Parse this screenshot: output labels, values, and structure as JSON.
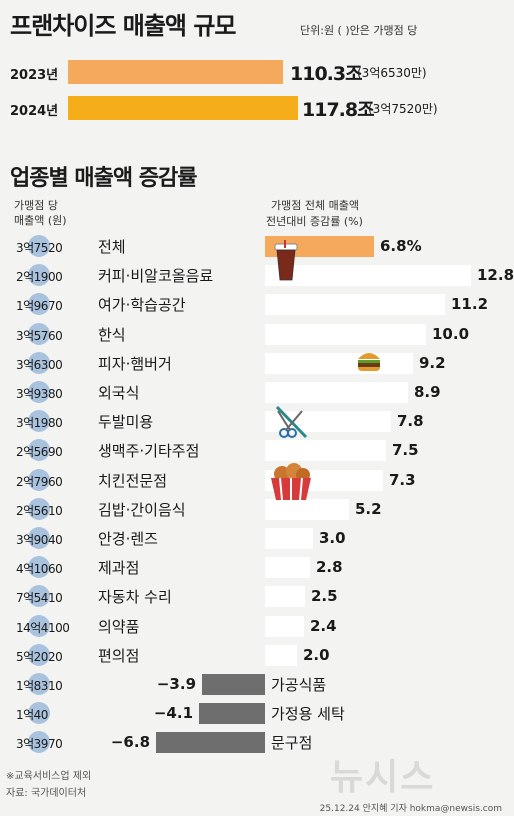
{
  "header": {
    "title": "프랜차이즈 매출액 규모",
    "unit_note": "단위:원 ( )안은 가맹점 당"
  },
  "totals": [
    {
      "year": "2023년",
      "value_label": "110.3조",
      "per_store": "(3억6530만)",
      "value": 110.3
    },
    {
      "year": "2024년",
      "value_label": "117.8조",
      "per_store": "(3억7520만)",
      "value": 117.8
    }
  ],
  "totals_colors": [
    "#f4a95c",
    "#f6ad1a"
  ],
  "section": {
    "title": "업종별 매출액 증감률",
    "left_header_1": "가맹점 당",
    "left_header_2": "매출액 (원)",
    "right_header_1": "가맹점 전체 매출액",
    "right_header_2": "전년대비 증감률 (%)"
  },
  "chart_data": {
    "type": "bar",
    "categories": [
      "전체",
      "커피·비알코올음료",
      "여가·학습공간",
      "한식",
      "피자·햄버거",
      "외국식",
      "두발미용",
      "생맥주·기타주점",
      "치킨전문점",
      "김밥·간이음식",
      "안경·렌즈",
      "제과점",
      "자동차 수리",
      "의약품",
      "편의점",
      "가공식품",
      "가정용 세탁",
      "문구점"
    ],
    "values": [
      6.8,
      12.8,
      11.2,
      10.0,
      9.2,
      8.9,
      7.8,
      7.5,
      7.3,
      5.2,
      3.0,
      2.8,
      2.5,
      2.4,
      2.0,
      -3.9,
      -4.1,
      -6.8
    ],
    "value_labels": [
      "6.8%",
      "12.8",
      "11.2",
      "10.0",
      "9.2",
      "8.9",
      "7.8",
      "7.5",
      "7.3",
      "5.2",
      "3.0",
      "2.8",
      "2.5",
      "2.4",
      "2.0",
      "−3.9",
      "−4.1",
      "−6.8"
    ],
    "per_store_sales": [
      "3억7520",
      "2억1900",
      "1억9670",
      "3억5760",
      "3억6300",
      "3억9380",
      "3억1980",
      "2억5690",
      "2억7960",
      "2억5610",
      "3억9040",
      "4억1060",
      "7억5410",
      "14억4100",
      "5억2020",
      "1억8310",
      "1억40",
      "3억3970"
    ],
    "colors": {
      "total": "#f4a95c",
      "positive": "#ffffff",
      "negative": "#6e6e6e",
      "bubble": "#a9c3df"
    }
  },
  "footnote": "※교육서비스업 제외",
  "source": "자료: 국가데이터처",
  "watermark": "뉴시스",
  "credit": "25.12.24 안지혜 기자 hokma@newsis.com"
}
